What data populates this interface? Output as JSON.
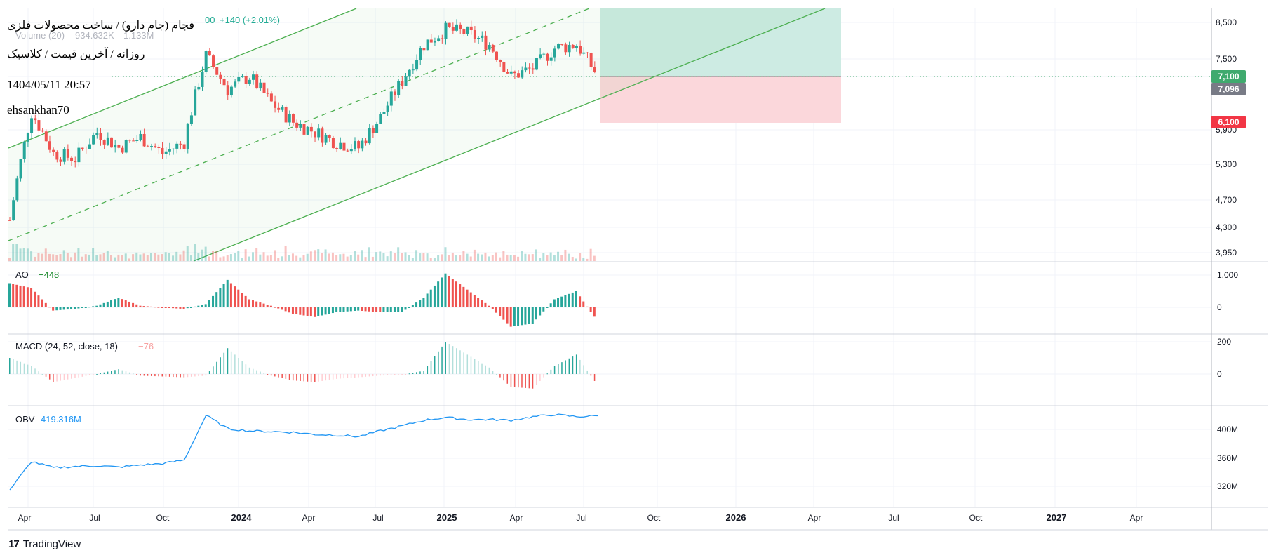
{
  "header": {
    "symbol_line": "فجام (جام دارو) / ساخت محصولات فلزی",
    "interval_line": "روزانه / آخرین قیمت / کلاسیک",
    "datetime": "1404/05/11 20:57",
    "author": "ehsankhan70",
    "change_text": "+140 (+2.01%)",
    "ohlc_tail": "00",
    "volume_label": "Volume (20)",
    "volume_value": "934.632K",
    "volume_ma": "1.133M"
  },
  "price_axis": {
    "ticks": [
      "8,500",
      "7,500",
      "5,900",
      "5,300",
      "4,700",
      "4,300",
      "3,950"
    ],
    "badges": [
      {
        "text": "7,100",
        "color": "#3faa6e"
      },
      {
        "text": "7,096",
        "color": "#787b86"
      },
      {
        "text": "6,100",
        "color": "#f23645"
      }
    ]
  },
  "indicators": {
    "ao": {
      "label": "AO",
      "value": "−448",
      "ticks": [
        "1,000",
        "0"
      ]
    },
    "macd": {
      "label": "MACD (24, 52, close, 18)",
      "value": "−76",
      "ticks": [
        "200",
        "0"
      ]
    },
    "obv": {
      "label": "OBV",
      "value": "419.316M",
      "ticks": [
        "400M",
        "360M",
        "320M"
      ]
    }
  },
  "time_axis": [
    {
      "text": "Apr",
      "bold": false
    },
    {
      "text": "Jul",
      "bold": false
    },
    {
      "text": "Oct",
      "bold": false
    },
    {
      "text": "2024",
      "bold": true
    },
    {
      "text": "Apr",
      "bold": false
    },
    {
      "text": "Jul",
      "bold": false
    },
    {
      "text": "2025",
      "bold": true
    },
    {
      "text": "Apr",
      "bold": false
    },
    {
      "text": "Jul",
      "bold": false
    },
    {
      "text": "Oct",
      "bold": false
    },
    {
      "text": "2026",
      "bold": true
    },
    {
      "text": "Apr",
      "bold": false
    },
    {
      "text": "Jul",
      "bold": false
    },
    {
      "text": "Oct",
      "bold": false
    },
    {
      "text": "2027",
      "bold": true
    },
    {
      "text": "Apr",
      "bold": false
    }
  ],
  "brand": {
    "name": "TradingView",
    "logo": "tradingview-logo"
  },
  "colors": {
    "up": "#26a69a",
    "down": "#ef5350",
    "obv": "#2196f3",
    "channel": "#4caf50",
    "target_zone": "#cdebe3",
    "stop_zone": "#fbd7db"
  },
  "chart_data": [
    {
      "type": "candlestick",
      "title": "",
      "y_scale": "log",
      "ylim": [
        3950,
        8500
      ],
      "series": [
        {
          "name": "",
          "x": [
            "2023-04",
            "2023-05",
            "2023-06",
            "2023-07",
            "2023-08",
            "2023-09",
            "2023-10",
            "2023-11",
            "2023-12",
            "2024-01",
            "2024-02",
            "2024-03",
            "2024-04",
            "2024-05",
            "2024-06",
            "2024-07",
            "2024-08",
            "2024-09",
            "2024-10",
            "2024-11",
            "2024-12",
            "2025-01",
            "2025-02",
            "2025-03",
            "2025-04",
            "2025-05",
            "2025-06",
            "2025-07"
          ],
          "close": [
            4400,
            6300,
            5500,
            5400,
            5900,
            5600,
            5800,
            5500,
            5700,
            7600,
            6800,
            7100,
            6500,
            6100,
            5900,
            5700,
            5600,
            6200,
            7000,
            7900,
            8300,
            8200,
            7900,
            7100,
            7300,
            7800,
            7900,
            7096
          ]
        }
      ],
      "trade_setup": {
        "entry": 7100,
        "stop": 6100,
        "last": 7096
      }
    },
    {
      "type": "bar",
      "title": "AO",
      "ylim": [
        -600,
        1100
      ],
      "series": [
        {
          "name": "",
          "x": [
            "2023-04",
            "2023-05",
            "2023-06",
            "2023-07",
            "2023-08",
            "2023-09",
            "2023-10",
            "2023-11",
            "2023-12",
            "2024-01",
            "2024-02",
            "2024-03",
            "2024-04",
            "2024-05",
            "2024-06",
            "2024-07",
            "2024-08",
            "2024-09",
            "2024-10",
            "2024-11",
            "2024-12",
            "2025-01",
            "2025-02",
            "2025-03",
            "2025-04",
            "2025-05",
            "2025-06",
            "2025-07"
          ],
          "values": [
            750,
            600,
            -100,
            -50,
            50,
            300,
            50,
            0,
            -50,
            100,
            850,
            250,
            50,
            -200,
            -300,
            -150,
            -100,
            -150,
            -150,
            300,
            1050,
            550,
            50,
            -600,
            -500,
            250,
            500,
            -448
          ]
        }
      ]
    },
    {
      "type": "bar",
      "title": "MACD (24, 52, close, 18)",
      "ylim": [
        -100,
        220
      ],
      "series": [
        {
          "name": "",
          "x": [
            "2023-04",
            "2023-05",
            "2023-06",
            "2023-07",
            "2023-08",
            "2023-09",
            "2023-10",
            "2023-11",
            "2023-12",
            "2024-01",
            "2024-02",
            "2024-03",
            "2024-04",
            "2024-05",
            "2024-06",
            "2024-07",
            "2024-08",
            "2024-09",
            "2024-10",
            "2024-11",
            "2024-12",
            "2025-01",
            "2025-02",
            "2025-03",
            "2025-04",
            "2025-05",
            "2025-06",
            "2025-07"
          ],
          "values": [
            100,
            50,
            -50,
            -25,
            0,
            30,
            -10,
            -15,
            -20,
            -10,
            160,
            40,
            -10,
            -40,
            -50,
            -30,
            -20,
            -10,
            -5,
            20,
            200,
            120,
            40,
            -80,
            -90,
            50,
            120,
            -76
          ]
        }
      ]
    },
    {
      "type": "line",
      "title": "OBV",
      "ylim": [
        300,
        430
      ],
      "series": [
        {
          "name": "",
          "x": [
            "2023-04",
            "2023-05",
            "2023-06",
            "2023-07",
            "2023-08",
            "2023-09",
            "2023-10",
            "2023-11",
            "2023-12",
            "2024-01",
            "2024-02",
            "2024-03",
            "2024-04",
            "2024-05",
            "2024-06",
            "2024-07",
            "2024-08",
            "2024-09",
            "2024-10",
            "2024-11",
            "2024-12",
            "2025-01",
            "2025-02",
            "2025-03",
            "2025-04",
            "2025-05",
            "2025-06",
            "2025-07"
          ],
          "values": [
            315,
            355,
            346,
            348,
            349,
            347,
            350,
            352,
            357,
            420,
            401,
            398,
            397,
            396,
            393,
            392,
            390,
            398,
            405,
            413,
            417,
            414,
            414,
            413,
            418,
            421,
            418,
            419.3
          ]
        }
      ]
    }
  ]
}
